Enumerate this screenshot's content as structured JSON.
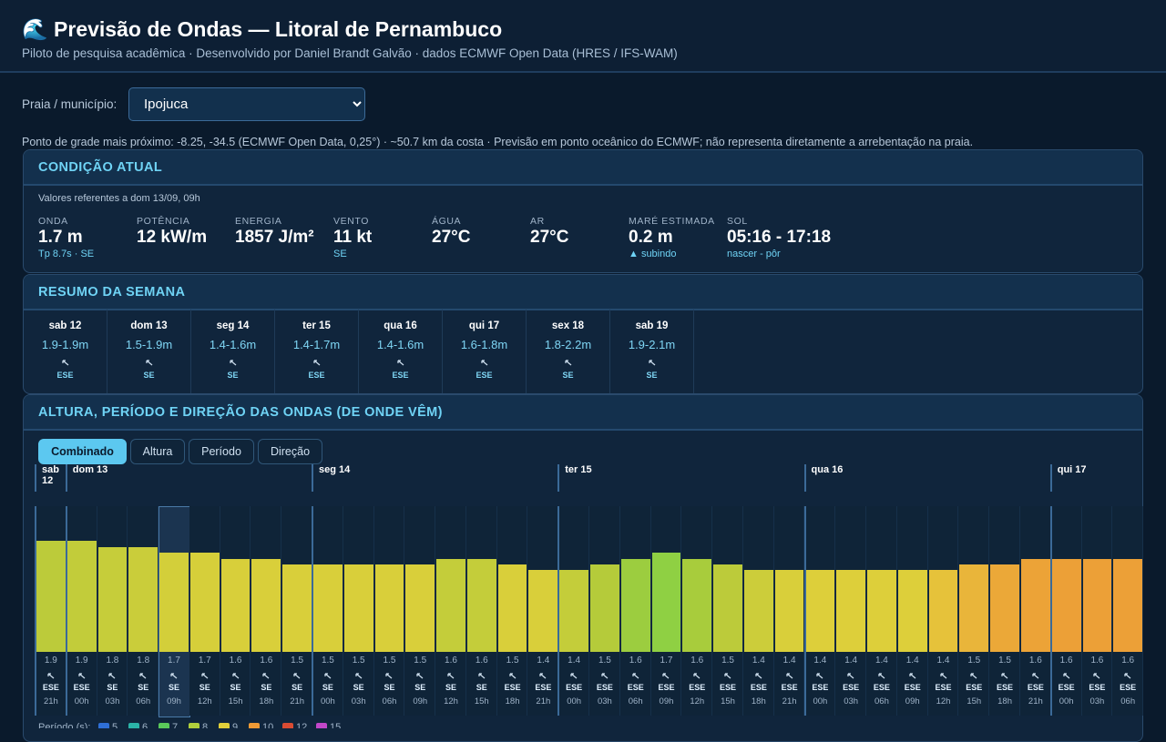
{
  "header": {
    "title": "🌊 Previsão de Ondas — Litoral de Pernambuco",
    "subtitle": "Piloto de pesquisa acadêmica · Desenvolvido por Daniel Brandt Galvão · dados ECMWF Open Data (HRES / IFS-WAM)"
  },
  "picker": {
    "label": "Praia / município:",
    "selected": "Ipojuca"
  },
  "grid_note": "Ponto de grade mais próximo: -8.25, -34.5 (ECMWF Open Data, 0,25°) · ~50.7 km da costa · Previsão em ponto oceânico do ECMWF; não representa diretamente a arrebentação na praia.",
  "current": {
    "title": "CONDIÇÃO ATUAL",
    "note": "Valores referentes a dom 13/09, 09h",
    "metrics": [
      {
        "label": "ONDA",
        "value": "1.7 m",
        "sub": "Tp 8.7s · SE"
      },
      {
        "label": "POTÊNCIA",
        "value": "12 kW/m"
      },
      {
        "label": "ENERGIA",
        "value": "1857 J/m²"
      },
      {
        "label": "VENTO",
        "value": "11 kt",
        "sub": "SE"
      },
      {
        "label": "ÁGUA",
        "value": "27°C"
      },
      {
        "label": "AR",
        "value": "27°C"
      },
      {
        "label": "MARÉ ESTIMADA",
        "value": "0.2 m",
        "sub": "▲ subindo"
      },
      {
        "label": "SOL",
        "value": "05:16 - 17:18",
        "sub": "nascer - pôr"
      }
    ]
  },
  "week": {
    "title": "RESUMO DA SEMANA",
    "days": [
      {
        "name": "sab 12",
        "range": "1.9-1.9m",
        "dir": "ESE"
      },
      {
        "name": "dom 13",
        "range": "1.5-1.9m",
        "dir": "SE"
      },
      {
        "name": "seg 14",
        "range": "1.4-1.6m",
        "dir": "SE"
      },
      {
        "name": "ter 15",
        "range": "1.4-1.7m",
        "dir": "ESE"
      },
      {
        "name": "qua 16",
        "range": "1.4-1.6m",
        "dir": "ESE"
      },
      {
        "name": "qui 17",
        "range": "1.6-1.8m",
        "dir": "ESE"
      },
      {
        "name": "sex 18",
        "range": "1.8-2.2m",
        "dir": "SE"
      },
      {
        "name": "sab 19",
        "range": "1.9-2.1m",
        "dir": "SE"
      }
    ]
  },
  "chart": {
    "title": "ALTURA, PERÍODO E DIREÇÃO DAS ONDAS (DE ONDE VÊM)",
    "type": "bar",
    "tabs": [
      "Combinado",
      "Altura",
      "Período",
      "Direção"
    ],
    "active_tab": 0,
    "ylim": [
      0,
      2.5
    ],
    "days": [
      {
        "name": "sab 12",
        "bars": [
          {
            "value": 1.9,
            "dir": "ESE",
            "time": "21h",
            "color": "#bccb3a"
          }
        ]
      },
      {
        "name": "dom 13",
        "bars": [
          {
            "value": 1.9,
            "dir": "ESE",
            "time": "00h",
            "color": "#c2cc3a"
          },
          {
            "value": 1.8,
            "dir": "SE",
            "time": "03h",
            "color": "#c6cd3a"
          },
          {
            "value": 1.8,
            "dir": "SE",
            "time": "06h",
            "color": "#cacd3a"
          },
          {
            "value": 1.7,
            "dir": "SE",
            "time": "09h",
            "color": "#d3cf3a",
            "current": true
          },
          {
            "value": 1.7,
            "dir": "SE",
            "time": "12h",
            "color": "#d6cf3a"
          },
          {
            "value": 1.6,
            "dir": "SE",
            "time": "15h",
            "color": "#d8cf3a"
          },
          {
            "value": 1.6,
            "dir": "SE",
            "time": "18h",
            "color": "#d9cf3a"
          },
          {
            "value": 1.5,
            "dir": "SE",
            "time": "21h",
            "color": "#d9cf3a"
          }
        ]
      },
      {
        "name": "seg 14",
        "bars": [
          {
            "value": 1.5,
            "dir": "SE",
            "time": "00h",
            "color": "#d9cf3a"
          },
          {
            "value": 1.5,
            "dir": "SE",
            "time": "03h",
            "color": "#d9cf3a"
          },
          {
            "value": 1.5,
            "dir": "SE",
            "time": "06h",
            "color": "#d9cf3a"
          },
          {
            "value": 1.5,
            "dir": "SE",
            "time": "09h",
            "color": "#d9cf3a"
          },
          {
            "value": 1.6,
            "dir": "SE",
            "time": "12h",
            "color": "#c4cd3a"
          },
          {
            "value": 1.6,
            "dir": "SE",
            "time": "15h",
            "color": "#c4cd3a"
          },
          {
            "value": 1.5,
            "dir": "ESE",
            "time": "18h",
            "color": "#d9cf3a"
          },
          {
            "value": 1.4,
            "dir": "ESE",
            "time": "21h",
            "color": "#d9cf3a"
          }
        ]
      },
      {
        "name": "ter 15",
        "bars": [
          {
            "value": 1.4,
            "dir": "ESE",
            "time": "00h",
            "color": "#c4cd3a"
          },
          {
            "value": 1.5,
            "dir": "ESE",
            "time": "03h",
            "color": "#b5cb3a"
          },
          {
            "value": 1.6,
            "dir": "ESE",
            "time": "06h",
            "color": "#9ccd3f"
          },
          {
            "value": 1.7,
            "dir": "ESE",
            "time": "09h",
            "color": "#8fd043"
          },
          {
            "value": 1.6,
            "dir": "ESE",
            "time": "12h",
            "color": "#a8cc3c"
          },
          {
            "value": 1.5,
            "dir": "ESE",
            "time": "15h",
            "color": "#bccb3a"
          },
          {
            "value": 1.4,
            "dir": "ESE",
            "time": "18h",
            "color": "#cccd3a"
          },
          {
            "value": 1.4,
            "dir": "ESE",
            "time": "21h",
            "color": "#d9cf3a"
          }
        ]
      },
      {
        "name": "qua 16",
        "bars": [
          {
            "value": 1.4,
            "dir": "ESE",
            "time": "00h",
            "color": "#ddcf3a"
          },
          {
            "value": 1.4,
            "dir": "ESE",
            "time": "03h",
            "color": "#ddcf3a"
          },
          {
            "value": 1.4,
            "dir": "ESE",
            "time": "06h",
            "color": "#ddcf3a"
          },
          {
            "value": 1.4,
            "dir": "ESE",
            "time": "09h",
            "color": "#ddcf3a"
          },
          {
            "value": 1.4,
            "dir": "ESE",
            "time": "12h",
            "color": "#e6c23a"
          },
          {
            "value": 1.5,
            "dir": "ESE",
            "time": "15h",
            "color": "#e9b53a"
          },
          {
            "value": 1.5,
            "dir": "ESE",
            "time": "18h",
            "color": "#eba838"
          },
          {
            "value": 1.6,
            "dir": "ESE",
            "time": "21h",
            "color": "#eca337"
          }
        ]
      },
      {
        "name": "qui 17",
        "bars": [
          {
            "value": 1.6,
            "dir": "ESE",
            "time": "00h",
            "color": "#eca037"
          },
          {
            "value": 1.6,
            "dir": "ESE",
            "time": "03h",
            "color": "#eca037"
          },
          {
            "value": 1.6,
            "dir": "ESE",
            "time": "06h",
            "color": "#eca037"
          }
        ]
      }
    ],
    "legend": {
      "title": "Período (s):",
      "items": [
        {
          "label": 5,
          "color": "#2f6fd6"
        },
        {
          "label": 6,
          "color": "#2bb3a8"
        },
        {
          "label": 7,
          "color": "#5ac85a"
        },
        {
          "label": 8,
          "color": "#b0cf3c"
        },
        {
          "label": 9,
          "color": "#e0cf3a"
        },
        {
          "label": 10,
          "color": "#ef9a35"
        },
        {
          "label": 12,
          "color": "#d94b33"
        },
        {
          "label": 15,
          "color": "#c247c9"
        }
      ]
    }
  }
}
